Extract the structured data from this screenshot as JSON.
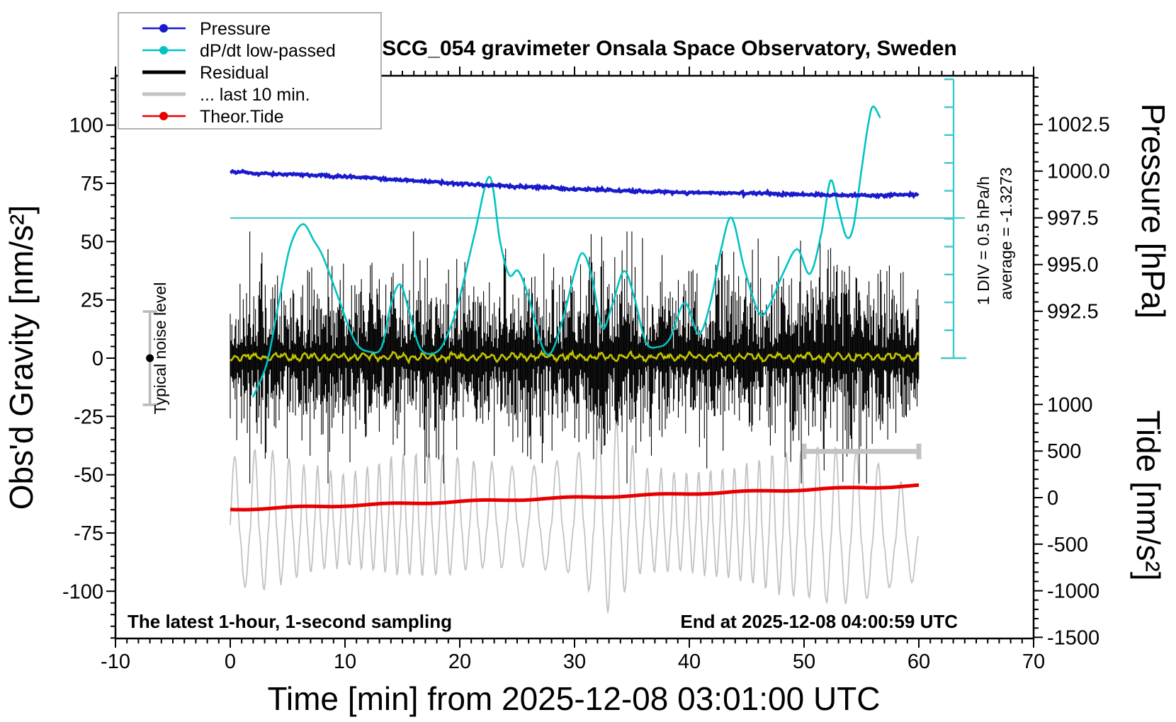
{
  "title": "SCG_054 gravimeter Onsala Space Observatory, Sweden",
  "legend": {
    "items": [
      {
        "label": "Pressure",
        "color": "#1a1acd",
        "thick": false,
        "dot": true
      },
      {
        "label": "dP/dt low-passed",
        "color": "#00c3c3",
        "thick": false,
        "dot": true
      },
      {
        "label": "Residual",
        "color": "#000000",
        "thick": true,
        "dot": false
      },
      {
        "label": "... last 10 min.",
        "color": "#c2c2c2",
        "thick": true,
        "dot": false
      },
      {
        "label": "Theor.Tide",
        "color": "#e80000",
        "thick": false,
        "dot": true
      }
    ]
  },
  "axes_labels": {
    "left": "Obs'd Gravity [nm/s²]",
    "bottom": "Time [min] from 2025-12-08 03:01:00 UTC",
    "pressure": "Pressure [hPa]",
    "tide": "Tide [nm/s²]"
  },
  "annotations": {
    "noise_label": "Typical noise level",
    "div_label": "1 DIV = 0.5 hPa/h",
    "average_label": "average = -1.3273",
    "sampling_note": "The latest 1-hour, 1-second sampling",
    "end_note": "End at 2025-12-08 04:00:59 UTC"
  },
  "chart_data": {
    "type": "line",
    "title": "SCG_054 gravimeter Onsala Space Observatory, Sweden",
    "xlabel": "Time [min] from 2025-12-08 03:01:00 UTC",
    "x_axis": {
      "unit": "min",
      "range": [
        -10,
        70
      ],
      "major_ticks": [
        -10,
        0,
        10,
        20,
        30,
        40,
        50,
        60,
        70
      ],
      "minor_step": 1
    },
    "gravity_axis": {
      "label": "Obs'd Gravity [nm/s²]",
      "range": [
        -120.5,
        121
      ],
      "major_ticks": [
        100,
        75,
        50,
        25,
        0,
        -25,
        -50,
        -75,
        -100
      ],
      "minor_step": 5
    },
    "pressure_axis": {
      "label": "Pressure [hPa]",
      "range_shown": [
        990.0,
        1005.1
      ],
      "major_ticks": [
        "1002.5",
        "1000.0",
        "997.5",
        "995.0",
        "992.5"
      ],
      "minor_step": 0.5
    },
    "tide_axis": {
      "label": "Tide [nm/s²]",
      "range_shown": [
        -1500,
        1500
      ],
      "major_ticks": [
        1000,
        500,
        0,
        -500,
        -1000,
        -1500
      ],
      "minor_step": 100
    },
    "series": [
      {
        "name": "Pressure",
        "axis": "pressure_hPa",
        "color": "#1a1acd",
        "width": 4.5,
        "points": [
          [
            0,
            999.95
          ],
          [
            3,
            999.87
          ],
          [
            6,
            999.8
          ],
          [
            9,
            999.73
          ],
          [
            12,
            999.64
          ],
          [
            15,
            999.52
          ],
          [
            18,
            999.42
          ],
          [
            21,
            999.28
          ],
          [
            24,
            999.21
          ],
          [
            27,
            999.13
          ],
          [
            30,
            999.05
          ],
          [
            33,
            998.98
          ],
          [
            36,
            998.92
          ],
          [
            39,
            998.86
          ],
          [
            42,
            998.83
          ],
          [
            45,
            998.81
          ],
          [
            48,
            998.77
          ],
          [
            51,
            998.73
          ],
          [
            54,
            998.71
          ],
          [
            56,
            998.7
          ],
          [
            58,
            998.73
          ],
          [
            60,
            998.74
          ]
        ]
      },
      {
        "name": "dP/dt low-passed",
        "axis": "dpdt_hPa_per_h",
        "color": "#00c3c3",
        "width": 2.6,
        "points": [
          [
            2.0,
            -3.2
          ],
          [
            3.2,
            -2.6
          ],
          [
            4.2,
            -1.55
          ],
          [
            5.2,
            -0.53
          ],
          [
            6.3,
            -0.11
          ],
          [
            7.3,
            -0.41
          ],
          [
            8.1,
            -0.7
          ],
          [
            9.4,
            -1.42
          ],
          [
            10.9,
            -2.22
          ],
          [
            12.2,
            -2.4
          ],
          [
            13.2,
            -2.31
          ],
          [
            14.0,
            -1.55
          ],
          [
            14.8,
            -1.19
          ],
          [
            15.6,
            -1.68
          ],
          [
            16.6,
            -2.35
          ],
          [
            18.0,
            -2.4
          ],
          [
            19.0,
            -2.06
          ],
          [
            20.0,
            -1.42
          ],
          [
            21.3,
            -0.28
          ],
          [
            22.6,
            0.74
          ],
          [
            23.5,
            -0.41
          ],
          [
            24.3,
            -1.02
          ],
          [
            25.1,
            -0.95
          ],
          [
            26.0,
            -1.42
          ],
          [
            27.2,
            -2.31
          ],
          [
            28.0,
            -2.4
          ],
          [
            29.0,
            -1.8
          ],
          [
            30.0,
            -0.98
          ],
          [
            30.7,
            -0.63
          ],
          [
            31.5,
            -1.04
          ],
          [
            32.4,
            -1.97
          ],
          [
            33.3,
            -1.55
          ],
          [
            34.3,
            -0.95
          ],
          [
            35.2,
            -1.42
          ],
          [
            36.2,
            -2.22
          ],
          [
            37.3,
            -2.31
          ],
          [
            38.3,
            -2.16
          ],
          [
            39.6,
            -1.52
          ],
          [
            40.8,
            -2.08
          ],
          [
            41.8,
            -1.55
          ],
          [
            42.8,
            -0.53
          ],
          [
            43.7,
            0.0
          ],
          [
            44.8,
            -0.91
          ],
          [
            46.1,
            -1.71
          ],
          [
            47.0,
            -1.55
          ],
          [
            48.2,
            -0.98
          ],
          [
            49.4,
            -0.56
          ],
          [
            50.5,
            -1.0
          ],
          [
            51.5,
            -0.28
          ],
          [
            52.3,
            0.67
          ],
          [
            53.0,
            0.16
          ],
          [
            53.7,
            -0.34
          ],
          [
            54.3,
            -0.15
          ],
          [
            55.0,
            0.86
          ],
          [
            55.6,
            1.69
          ],
          [
            56.0,
            2.0
          ],
          [
            56.6,
            1.81
          ]
        ]
      },
      {
        "name": "Residual",
        "axis": "gravity_nm_s2",
        "color": "#000000",
        "kind": "noise_band",
        "center": 0,
        "sigma_profile": [
          [
            0,
            17
          ],
          [
            3,
            21
          ],
          [
            6,
            18
          ],
          [
            9,
            20
          ],
          [
            12,
            21
          ],
          [
            15,
            18
          ],
          [
            18,
            23
          ],
          [
            21,
            20
          ],
          [
            24,
            21
          ],
          [
            27,
            18
          ],
          [
            30,
            22
          ],
          [
            33,
            24
          ],
          [
            36,
            20
          ],
          [
            39,
            18
          ],
          [
            42,
            21
          ],
          [
            45,
            19
          ],
          [
            48,
            21
          ],
          [
            51,
            23
          ],
          [
            54,
            26
          ],
          [
            57,
            21
          ],
          [
            60,
            18
          ]
        ]
      },
      {
        "name": "Residual low-passed",
        "axis": "gravity_nm_s2",
        "color": "#c3c300",
        "kind": "wiggle",
        "center": 0,
        "amplitude": 1.8
      },
      {
        "name": "... last 10 min.",
        "axis": "gravity_nm_s2",
        "color": "#c2c2c2",
        "kind": "oscillation",
        "center": -76,
        "amplitude_profile": [
          [
            0,
            29
          ],
          [
            3,
            33
          ],
          [
            6,
            26
          ],
          [
            10,
            21
          ],
          [
            14,
            27
          ],
          [
            18,
            29
          ],
          [
            22,
            24
          ],
          [
            26,
            23
          ],
          [
            30,
            27
          ],
          [
            33,
            48
          ],
          [
            36,
            24
          ],
          [
            40,
            23
          ],
          [
            44,
            26
          ],
          [
            48,
            33
          ],
          [
            52,
            36
          ],
          [
            55,
            35
          ],
          [
            58,
            24
          ],
          [
            60,
            21
          ]
        ]
      },
      {
        "name": "Theor.Tide",
        "axis": "tide_nm_s2",
        "color": "#e80000",
        "width": 5,
        "points": [
          [
            0,
            -128
          ],
          [
            60,
            128
          ]
        ]
      }
    ],
    "reference_line": {
      "name": "dpdt-zero-line",
      "axis": "dpdt_hPa_per_h",
      "value": 0,
      "t_range": [
        0,
        64
      ]
    },
    "scale_bar": {
      "divisions": 10,
      "div_value": "0.5 hPa/h",
      "label": "1 DIV = 0.5 hPa/h",
      "average": -1.3273
    },
    "noise_errorbar": {
      "t": -7,
      "center_nm": 0,
      "half_range_nm": 20
    },
    "last10_bar": {
      "t_range": [
        50,
        60
      ],
      "gravity_nm": -40
    },
    "layout": {
      "grid": false,
      "legend_position": "top-left"
    }
  }
}
